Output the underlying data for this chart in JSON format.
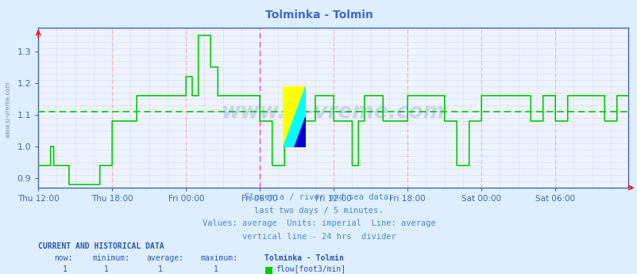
{
  "title": "Tolminka - Tolmin",
  "title_color": "#4466cc",
  "bg_color": "#ddeeff",
  "plot_bg_color": "#eef4ff",
  "line_color": "#00cc00",
  "avg_line_color": "#00cc00",
  "avg_line_value": 1.11,
  "ylim": [
    0.87,
    1.375
  ],
  "yticks": [
    0.9,
    1.0,
    1.1,
    1.2,
    1.3
  ],
  "grid_minor_color": "#bbbbcc",
  "vline_6h_color": "#ffaaaa",
  "vline_24h_color": "#ee44ee",
  "axis_color": "#4466aa",
  "tick_label_color": "#4466aa",
  "watermark": "www.si-vreme.com",
  "subtitle_lines": [
    "Slovenia / river and sea data.",
    "last two days / 5 minutes.",
    "Values: average  Units: imperial  Line: average",
    "vertical line - 24 hrs  divider"
  ],
  "subtitle_color": "#5588bb",
  "footer_bold": "CURRENT AND HISTORICAL DATA",
  "footer_color": "#3355aa",
  "footer_legend_color": "#00cc00",
  "footer_legend_label": "flow[foot3/min]",
  "x_tick_labels": [
    "Thu 12:00",
    "Thu 18:00",
    "Fri 00:00",
    "Fri 06:00",
    "Fri 12:00",
    "Fri 18:00",
    "Sat 00:00",
    "Sat 06:00"
  ],
  "n_points": 576,
  "vline_24h_index": 216,
  "segment_data": [
    {
      "s": 0,
      "e": 12,
      "v": 0.94
    },
    {
      "s": 12,
      "e": 15,
      "v": 1.0
    },
    {
      "s": 15,
      "e": 30,
      "v": 0.94
    },
    {
      "s": 30,
      "e": 60,
      "v": 0.88
    },
    {
      "s": 60,
      "e": 72,
      "v": 0.94
    },
    {
      "s": 72,
      "e": 96,
      "v": 1.08
    },
    {
      "s": 96,
      "e": 144,
      "v": 1.16
    },
    {
      "s": 144,
      "e": 150,
      "v": 1.22
    },
    {
      "s": 150,
      "e": 156,
      "v": 1.16
    },
    {
      "s": 156,
      "e": 168,
      "v": 1.35
    },
    {
      "s": 168,
      "e": 175,
      "v": 1.25
    },
    {
      "s": 175,
      "e": 216,
      "v": 1.16
    },
    {
      "s": 216,
      "e": 228,
      "v": 1.08
    },
    {
      "s": 228,
      "e": 240,
      "v": 0.94
    },
    {
      "s": 240,
      "e": 270,
      "v": 1.08
    },
    {
      "s": 270,
      "e": 288,
      "v": 1.16
    },
    {
      "s": 288,
      "e": 306,
      "v": 1.08
    },
    {
      "s": 306,
      "e": 312,
      "v": 0.94
    },
    {
      "s": 312,
      "e": 318,
      "v": 1.08
    },
    {
      "s": 318,
      "e": 336,
      "v": 1.16
    },
    {
      "s": 336,
      "e": 360,
      "v": 1.08
    },
    {
      "s": 360,
      "e": 396,
      "v": 1.16
    },
    {
      "s": 396,
      "e": 408,
      "v": 1.08
    },
    {
      "s": 408,
      "e": 420,
      "v": 0.94
    },
    {
      "s": 420,
      "e": 432,
      "v": 1.08
    },
    {
      "s": 432,
      "e": 480,
      "v": 1.16
    },
    {
      "s": 480,
      "e": 492,
      "v": 1.08
    },
    {
      "s": 492,
      "e": 504,
      "v": 1.16
    },
    {
      "s": 504,
      "e": 516,
      "v": 1.08
    },
    {
      "s": 516,
      "e": 552,
      "v": 1.16
    },
    {
      "s": 552,
      "e": 564,
      "v": 1.08
    },
    {
      "s": 564,
      "e": 576,
      "v": 1.16
    }
  ]
}
